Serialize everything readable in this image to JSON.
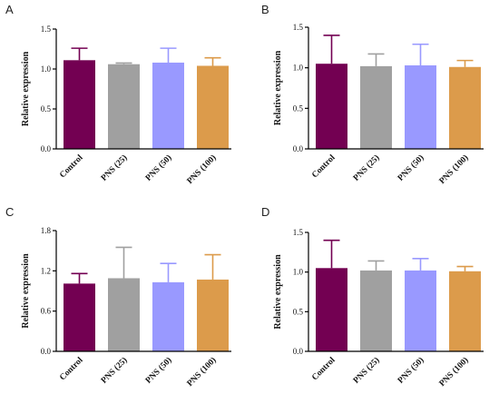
{
  "series_colors": [
    "#730052",
    "#a0a0a0",
    "#9999ff",
    "#dc9b4b"
  ],
  "chart_data": [
    {
      "type": "bar",
      "panel": "A",
      "categories": [
        "Control",
        "PNS (25)",
        "PNS (50)",
        "PNS (100)"
      ],
      "values": [
        1.11,
        1.06,
        1.08,
        1.04
      ],
      "errors": [
        0.15,
        0.015,
        0.18,
        0.1
      ],
      "ylabel": "Relative expression",
      "ylim": [
        0,
        1.5
      ],
      "yticks": [
        "0.0",
        "0.5",
        "1.0",
        "1.5"
      ],
      "ytick_values": [
        0,
        0.5,
        1.0,
        1.5
      ]
    },
    {
      "type": "bar",
      "panel": "B",
      "categories": [
        "Control",
        "PNS (25)",
        "PNS (50)",
        "PNS (100)"
      ],
      "values": [
        1.05,
        1.02,
        1.03,
        1.01
      ],
      "errors": [
        0.35,
        0.15,
        0.26,
        0.08
      ],
      "ylabel": "Relative expression",
      "ylim": [
        0,
        1.5
      ],
      "yticks": [
        "0.0",
        "0.5",
        "1.0",
        "1.5"
      ],
      "ytick_values": [
        0,
        0.5,
        1.0,
        1.5
      ]
    },
    {
      "type": "bar",
      "panel": "C",
      "categories": [
        "Control",
        "PNS (25)",
        "PNS (50)",
        "PNS (100)"
      ],
      "values": [
        1.01,
        1.09,
        1.03,
        1.07
      ],
      "errors": [
        0.15,
        0.46,
        0.28,
        0.37
      ],
      "ylabel": "Relative expression",
      "ylim": [
        0,
        1.8
      ],
      "yticks": [
        "0.0",
        "0.6",
        "1.2",
        "1.8"
      ],
      "ytick_values": [
        0,
        0.6,
        1.2,
        1.8
      ]
    },
    {
      "type": "bar",
      "panel": "D",
      "categories": [
        "Control",
        "PNS (25)",
        "PNS (50)",
        "PNS (100)"
      ],
      "values": [
        1.05,
        1.02,
        1.02,
        1.01
      ],
      "errors": [
        0.35,
        0.12,
        0.15,
        0.06
      ],
      "ylabel": "Relative expression",
      "ylim": [
        0,
        1.5
      ],
      "yticks": [
        "0.0",
        "0.5",
        "1.0",
        "1.5"
      ],
      "ytick_values": [
        0,
        0.5,
        1.0,
        1.5
      ]
    }
  ]
}
